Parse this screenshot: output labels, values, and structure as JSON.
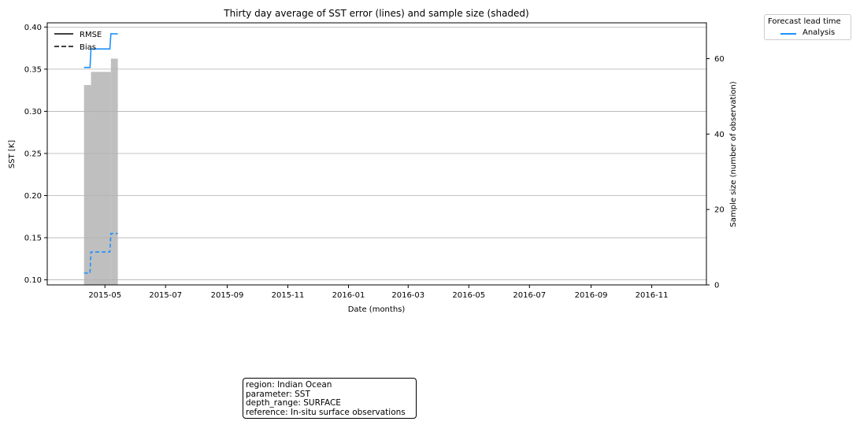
{
  "chart_data": {
    "type": "line",
    "title": "Thirty day average of SST error (lines) and sample size (shaded)",
    "xlabel": "Date (months)",
    "ylabel": "SST [K]",
    "y2label": "Sample size (number of observation)",
    "x_range": [
      "2015-03-04",
      "2016-12-26"
    ],
    "ylim": [
      0.094,
      0.405
    ],
    "y2lim": [
      0,
      69.5
    ],
    "x_ticks": [
      "2015-05",
      "2015-07",
      "2015-09",
      "2015-11",
      "2016-01",
      "2016-03",
      "2016-05",
      "2016-07",
      "2016-09",
      "2016-11"
    ],
    "y_ticks": [
      0.1,
      0.15,
      0.2,
      0.25,
      0.3,
      0.35,
      0.4
    ],
    "y_tick_labels": [
      "0.10",
      "0.15",
      "0.20",
      "0.25",
      "0.30",
      "0.35",
      "0.40"
    ],
    "y2_ticks": [
      0,
      20,
      40,
      60
    ],
    "y2_tick_labels": [
      "0",
      "20",
      "40",
      "60"
    ],
    "grid": "horizontal",
    "style_legend": {
      "placement": "top-left",
      "items": [
        {
          "label": "RMSE",
          "dash": "solid"
        },
        {
          "label": "Bias",
          "dash": "dashed"
        }
      ]
    },
    "lead_legend": {
      "title": "Forecast lead time",
      "items": [
        {
          "label": "Analysis",
          "color": "#1e90ff"
        }
      ]
    },
    "sample_size": {
      "color": "#bfbfbf",
      "bars": [
        {
          "start": "2015-04-10",
          "end": "2015-04-17",
          "value": 53
        },
        {
          "start": "2015-04-17",
          "end": "2015-05-07",
          "value": 56.5
        },
        {
          "start": "2015-05-07",
          "end": "2015-05-14",
          "value": 60
        }
      ]
    },
    "series": [
      {
        "name": "Analysis",
        "metric": "RMSE",
        "color": "#1e90ff",
        "dash": "solid",
        "x": [
          "2015-04-10",
          "2015-04-16",
          "2015-04-17",
          "2015-05-06",
          "2015-05-07",
          "2015-05-14"
        ],
        "y": [
          0.352,
          0.352,
          0.374,
          0.374,
          0.392,
          0.392
        ]
      },
      {
        "name": "Analysis",
        "metric": "Bias",
        "color": "#1e90ff",
        "dash": "dashed",
        "x": [
          "2015-04-10",
          "2015-04-16",
          "2015-04-17",
          "2015-05-06",
          "2015-05-07",
          "2015-05-14"
        ],
        "y": [
          0.108,
          0.108,
          0.133,
          0.133,
          0.155,
          0.155
        ]
      }
    ]
  },
  "info_box": {
    "lines": [
      "region: Indian Ocean",
      "parameter: SST",
      "depth_range: SURFACE",
      "reference: In-situ surface observations"
    ]
  }
}
